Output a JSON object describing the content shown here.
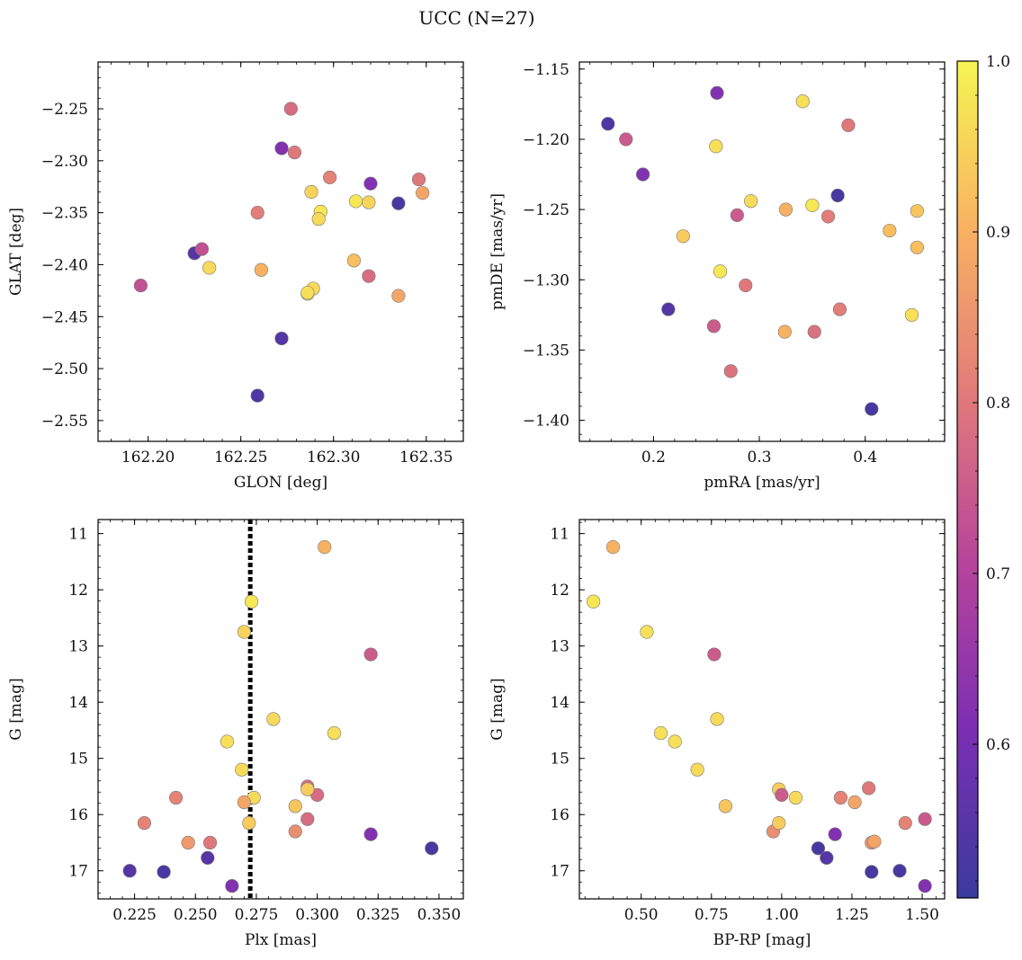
{
  "title": "UCC (N=27)",
  "colorbar": {
    "colormap": "plasma",
    "range": [
      0.51,
      1.0
    ],
    "ticks": [
      "0.6",
      "0.7",
      "0.8",
      "0.9",
      "1.0"
    ],
    "tick_values": [
      0.6,
      0.7,
      0.8,
      0.9,
      1.0
    ]
  },
  "chart_data": [
    {
      "type": "scatter",
      "name": "panel-glon-glat",
      "xlabel": "GLON [deg]",
      "ylabel": "GLAT [deg]",
      "xlim": [
        162.173,
        162.37
      ],
      "ylim": [
        -2.57,
        -2.205
      ],
      "y_inverted": false,
      "xticks": [
        "162.20",
        "162.25",
        "162.30",
        "162.35"
      ],
      "xtick_values": [
        162.2,
        162.25,
        162.3,
        162.35
      ],
      "yticks": [
        "−2.55",
        "−2.50",
        "−2.45",
        "−2.40",
        "−2.35",
        "−2.30",
        "−2.25"
      ],
      "ytick_values": [
        -2.55,
        -2.5,
        -2.45,
        -2.4,
        -2.35,
        -2.3,
        -2.25
      ],
      "x": [
        162.277,
        162.272,
        162.279,
        162.298,
        162.32,
        162.346,
        162.348,
        162.288,
        162.312,
        162.319,
        162.335,
        162.259,
        162.293,
        162.292,
        162.225,
        162.229,
        162.233,
        162.261,
        162.196,
        162.311,
        162.319,
        162.289,
        162.286,
        162.335,
        162.272,
        162.259,
        162.286
      ],
      "y": [
        -2.25,
        -2.288,
        -2.292,
        -2.316,
        -2.322,
        -2.318,
        -2.331,
        -2.33,
        -2.339,
        -2.34,
        -2.341,
        -2.35,
        -2.349,
        -2.356,
        -2.389,
        -2.385,
        -2.403,
        -2.405,
        -2.42,
        -2.396,
        -2.411,
        -2.423,
        -2.428,
        -2.43,
        -2.471,
        -2.526,
        -2.427
      ],
      "c": [
        0.78,
        0.62,
        0.8,
        0.82,
        0.62,
        0.8,
        0.88,
        0.95,
        0.98,
        0.95,
        0.53,
        0.81,
        0.98,
        0.96,
        0.55,
        0.73,
        0.96,
        0.9,
        0.73,
        0.92,
        0.78,
        0.96,
        0.98,
        0.88,
        0.55,
        0.54,
        0.97
      ]
    },
    {
      "type": "scatter",
      "name": "panel-pmra-pmde",
      "xlabel": "pmRA [mas/yr]",
      "ylabel": "pmDE [mas/yr]",
      "xlim": [
        0.13,
        0.475
      ],
      "ylim": [
        -1.415,
        -1.145
      ],
      "y_inverted": false,
      "xticks": [
        "0.2",
        "0.3",
        "0.4"
      ],
      "xtick_values": [
        0.2,
        0.3,
        0.4
      ],
      "yticks": [
        "−1.40",
        "−1.35",
        "−1.30",
        "−1.25",
        "−1.20",
        "−1.15"
      ],
      "ytick_values": [
        -1.4,
        -1.35,
        -1.3,
        -1.25,
        -1.2,
        -1.15
      ],
      "x": [
        0.26,
        0.341,
        0.157,
        0.174,
        0.384,
        0.259,
        0.19,
        0.292,
        0.374,
        0.325,
        0.35,
        0.279,
        0.365,
        0.449,
        0.423,
        0.228,
        0.449,
        0.263,
        0.287,
        0.214,
        0.376,
        0.444,
        0.257,
        0.324,
        0.352,
        0.273,
        0.406
      ],
      "y": [
        -1.167,
        -1.173,
        -1.189,
        -1.2,
        -1.19,
        -1.205,
        -1.225,
        -1.244,
        -1.24,
        -1.25,
        -1.247,
        -1.254,
        -1.255,
        -1.251,
        -1.265,
        -1.269,
        -1.277,
        -1.294,
        -1.304,
        -1.321,
        -1.321,
        -1.325,
        -1.333,
        -1.337,
        -1.337,
        -1.365,
        -1.392
      ],
      "c": [
        0.62,
        0.97,
        0.54,
        0.75,
        0.8,
        0.97,
        0.62,
        0.96,
        0.53,
        0.9,
        0.98,
        0.75,
        0.81,
        0.93,
        0.92,
        0.94,
        0.92,
        0.98,
        0.8,
        0.55,
        0.81,
        0.97,
        0.75,
        0.9,
        0.79,
        0.79,
        0.53
      ]
    },
    {
      "type": "scatter",
      "name": "panel-plx-g",
      "xlabel": "Plx [mas]",
      "ylabel": "G [mag]",
      "xlim": [
        0.21,
        0.36
      ],
      "ylim": [
        17.5,
        10.75
      ],
      "y_inverted": true,
      "xticks": [
        "0.225",
        "0.250",
        "0.275",
        "0.300",
        "0.325",
        "0.350"
      ],
      "xtick_values": [
        0.225,
        0.25,
        0.275,
        0.3,
        0.325,
        0.35
      ],
      "yticks": [
        "11",
        "12",
        "13",
        "14",
        "15",
        "16",
        "17"
      ],
      "ytick_values": [
        11,
        12,
        13,
        14,
        15,
        16,
        17
      ],
      "vline": 0.2725,
      "x": [
        0.303,
        0.273,
        0.27,
        0.322,
        0.282,
        0.307,
        0.263,
        0.269,
        0.296,
        0.3,
        0.274,
        0.242,
        0.27,
        0.291,
        0.296,
        0.229,
        0.272,
        0.291,
        0.322,
        0.247,
        0.256,
        0.255,
        0.347,
        0.223,
        0.237,
        0.265,
        0.296
      ],
      "y": [
        11.24,
        12.21,
        12.75,
        13.15,
        14.3,
        14.55,
        14.7,
        15.2,
        15.5,
        15.65,
        15.7,
        15.7,
        15.78,
        15.85,
        16.08,
        16.15,
        16.15,
        16.3,
        16.35,
        16.5,
        16.5,
        16.77,
        16.6,
        17.0,
        17.02,
        17.27,
        15.55
      ],
      "c": [
        0.9,
        0.98,
        0.95,
        0.75,
        0.96,
        0.97,
        0.97,
        0.96,
        0.78,
        0.78,
        0.96,
        0.82,
        0.88,
        0.93,
        0.78,
        0.82,
        0.94,
        0.84,
        0.62,
        0.86,
        0.8,
        0.55,
        0.53,
        0.55,
        0.53,
        0.62,
        0.94
      ]
    },
    {
      "type": "scatter",
      "name": "panel-bprp-g",
      "xlabel": "BP-RP [mag]",
      "ylabel": "G [mag]",
      "xlim": [
        0.28,
        1.58
      ],
      "ylim": [
        17.5,
        10.75
      ],
      "y_inverted": true,
      "xticks": [
        "0.50",
        "0.75",
        "1.00",
        "1.25",
        "1.50"
      ],
      "xtick_values": [
        0.5,
        0.75,
        1.0,
        1.25,
        1.5
      ],
      "yticks": [
        "11",
        "12",
        "13",
        "14",
        "15",
        "16",
        "17"
      ],
      "ytick_values": [
        11,
        12,
        13,
        14,
        15,
        16,
        17
      ],
      "x": [
        0.4,
        0.33,
        0.52,
        0.76,
        0.77,
        0.57,
        0.62,
        0.7,
        0.99,
        1.0,
        1.05,
        1.21,
        1.26,
        1.31,
        0.8,
        0.97,
        0.99,
        1.19,
        1.32,
        1.33,
        1.44,
        1.51,
        1.13,
        1.16,
        1.32,
        1.42,
        1.51
      ],
      "y": [
        11.24,
        12.21,
        12.75,
        13.15,
        14.3,
        14.55,
        14.7,
        15.2,
        15.55,
        15.65,
        15.7,
        15.7,
        15.78,
        15.53,
        15.85,
        16.3,
        16.15,
        16.35,
        16.5,
        16.48,
        16.15,
        16.08,
        16.6,
        16.77,
        17.02,
        17.0,
        17.27
      ],
      "c": [
        0.9,
        0.98,
        0.97,
        0.75,
        0.96,
        0.97,
        0.97,
        0.96,
        0.94,
        0.75,
        0.96,
        0.82,
        0.88,
        0.8,
        0.93,
        0.84,
        0.94,
        0.62,
        0.84,
        0.88,
        0.82,
        0.75,
        0.53,
        0.55,
        0.53,
        0.53,
        0.62
      ]
    }
  ]
}
